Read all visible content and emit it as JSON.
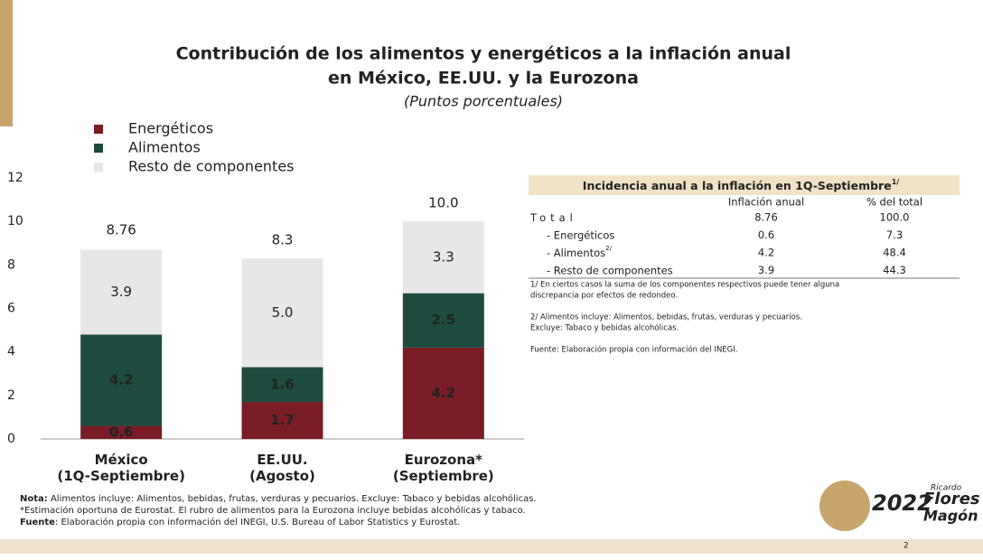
{
  "chart_data": {
    "type": "stacked_bar",
    "title": "Contribución de los alimentos y energéticos a la inflación anual",
    "title_line2": "en México, EE.UU. y la Eurozona",
    "subtitle": "(Puntos porcentuales)",
    "categories": [
      "México\n(1Q-Septiembre)",
      "EE.UU.\n(Agosto)",
      "Eurozona*\n(Septiembre)"
    ],
    "series": [
      {
        "name": "Energéticos",
        "color": "#7a1c24",
        "values": [
          0.6,
          1.7,
          4.2
        ]
      },
      {
        "name": "Alimentos",
        "color": "#1d4b3f",
        "values": [
          4.2,
          1.6,
          2.5
        ]
      },
      {
        "name": "Resto de componentes",
        "color": "#e7e7e7",
        "values": [
          3.9,
          5.0,
          3.3
        ],
        "value_labels": [
          "3.9",
          "5.0",
          "3.3"
        ]
      }
    ],
    "totals": [
      8.76,
      8.3,
      10.0
    ],
    "total_labels": [
      "8.76",
      "8.3",
      "10.0"
    ],
    "ylim": [
      0,
      12
    ],
    "yticks": [
      0,
      2,
      4,
      6,
      8,
      10,
      12
    ],
    "grid": false,
    "legend": "top-left"
  },
  "table": {
    "title": "Incidencia anual a la inflación en 1Q-Septiembre",
    "title_note": "1/",
    "columns": [
      "Inflación anual",
      "% del total"
    ],
    "rows": [
      {
        "label": "Total",
        "note": "",
        "cells": [
          "8.76",
          "100.0"
        ]
      },
      {
        "label": "- Energéticos",
        "note": "",
        "cells": [
          "0.6",
          "7.3"
        ]
      },
      {
        "label": "- Alimentos",
        "note": "2/",
        "cells": [
          "4.2",
          "48.4"
        ]
      },
      {
        "label": "- Resto de componentes",
        "note": "",
        "cells": [
          "3.9",
          "44.3"
        ]
      }
    ],
    "notes": [
      "1/ En ciertos casos la suma de los componentes respectivos  puede tener alguna",
      "discrepancia por efectos de redondeo.",
      "2/ Alimentos incluye: Alimentos, bebidas, frutas, verduras y pecuarios.",
      "Excluye: Tabaco y bebidas alcohólicas.",
      "Fuente: Elaboración propia con información del INEGI."
    ]
  },
  "footnotes": [
    {
      "label": "Nota:",
      "text": " Alimentos incluye: Alimentos, bebidas, frutas, verduras y pecuarios. Excluye: Tabaco y bebidas alcohólicas."
    },
    {
      "label": "",
      "text": "*Estimación oportuna de Eurostat. El rubro de alimentos para la Eurozona incluye bebidas alcohólicas y tabaco."
    },
    {
      "label": "Fuente",
      "text": ": Elaboración propia con información del INEGI, U.S. Bureau of Labor Statistics y Eurostat."
    }
  ],
  "logo": {
    "year": "2022",
    "name1": "Ricardo",
    "name2": "Flores",
    "name3": "Magón"
  },
  "page_number": "2"
}
